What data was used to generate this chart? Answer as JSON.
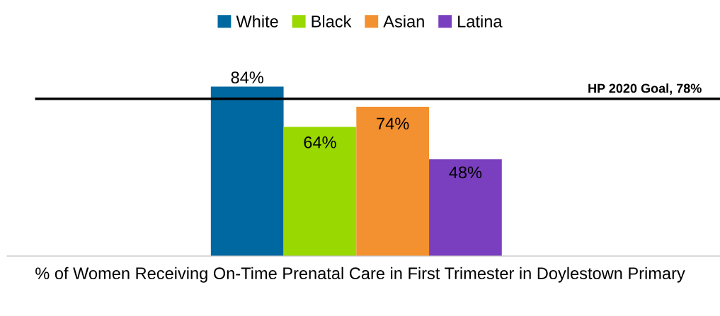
{
  "chart_data": {
    "type": "bar",
    "categories": [
      null
    ],
    "xlabel": "% of Women Receiving On-Time Prenatal Care in First Trimester in Doylestown Primary",
    "series": [
      {
        "name": "White",
        "color": "#0068a0",
        "values": [
          84
        ],
        "value_labels": [
          "84%"
        ]
      },
      {
        "name": "Black",
        "color": "#99d800",
        "values": [
          64
        ],
        "value_labels": [
          "64%"
        ]
      },
      {
        "name": "Asian",
        "color": "#f39130",
        "values": [
          74
        ],
        "value_labels": [
          "74%"
        ]
      },
      {
        "name": "Latina",
        "color": "#7a3fbf",
        "values": [
          48
        ],
        "value_labels": [
          "48%"
        ]
      }
    ],
    "ref_lines": [
      {
        "axis": "y",
        "value": 78,
        "label": "HP 2020 Goal, 78%",
        "color": "#000000"
      }
    ],
    "legend": "top"
  }
}
